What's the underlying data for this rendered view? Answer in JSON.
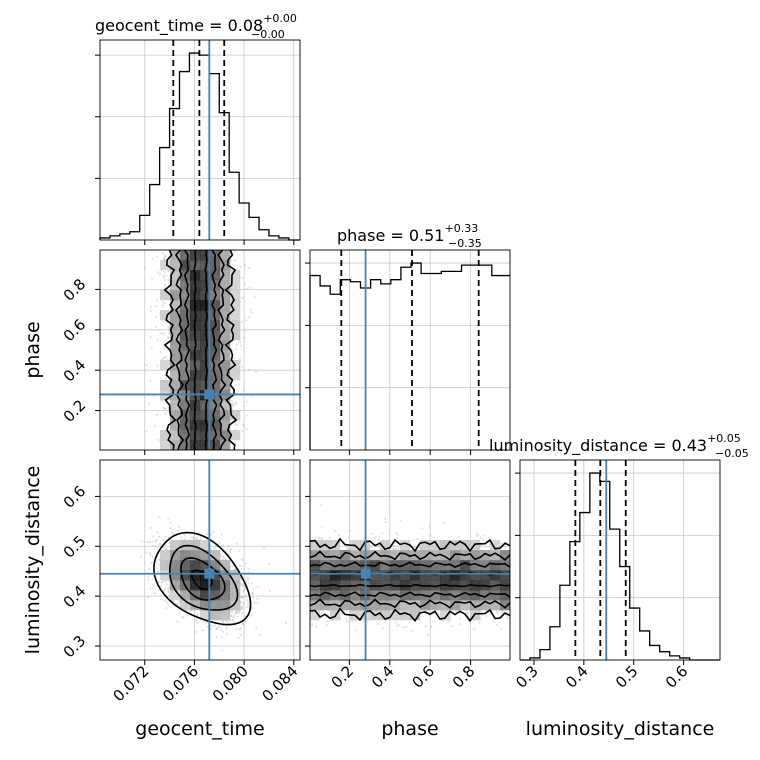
{
  "chart_data": {
    "type": "corner",
    "parameters": [
      "geocent_time",
      "phase",
      "luminosity_distance"
    ],
    "truths": [
      0.0772,
      0.28,
      0.445
    ],
    "colors": {
      "truth": "#4682b4",
      "hist": "#000000",
      "grid": "#c8c8c8",
      "contour": "#000000"
    },
    "grid": true,
    "titles": [
      {
        "text": "geocent_time = 0.08",
        "sup": "+0.00",
        "sub": "−0.00"
      },
      {
        "text": "phase = 0.51",
        "sup": "+0.33",
        "sub": "−0.35"
      },
      {
        "text": "luminosity_distance = 0.43",
        "sup": "+0.05",
        "sub": "−0.05"
      }
    ],
    "axes": {
      "geocent_time": {
        "range": [
          0.0684,
          0.0845
        ],
        "ticks": [
          0.072,
          0.076,
          0.08,
          0.084
        ],
        "tick_labels": [
          "0.072",
          "0.076",
          "0.080",
          "0.084"
        ]
      },
      "phase": {
        "range": [
          0.005,
          0.995
        ],
        "ticks": [
          0.2,
          0.4,
          0.6,
          0.8
        ],
        "tick_labels": [
          "0.2",
          "0.4",
          "0.6",
          "0.8"
        ]
      },
      "luminosity_distance": {
        "range": [
          0.272,
          0.673
        ],
        "ticks": [
          0.3,
          0.4,
          0.5,
          0.6
        ],
        "tick_labels": [
          "0.3",
          "0.4",
          "0.5",
          "0.6"
        ]
      }
    },
    "marginals": [
      {
        "param": "geocent_time",
        "quantiles": [
          0.0743,
          0.0764,
          0.0784
        ],
        "bin_edges": [
          0.0684,
          0.0692,
          0.07,
          0.0708,
          0.0716,
          0.0724,
          0.0732,
          0.074,
          0.0748,
          0.0756,
          0.0764,
          0.0772,
          0.078,
          0.0788,
          0.0796,
          0.0804,
          0.0812,
          0.082,
          0.0828,
          0.0836,
          0.0845
        ],
        "counts": [
          1,
          2,
          3,
          4,
          12,
          27,
          45,
          64,
          82,
          91,
          90,
          81,
          62,
          33,
          18,
          11,
          5,
          2,
          1,
          0
        ]
      },
      {
        "param": "phase",
        "quantiles": [
          0.16,
          0.51,
          0.84
        ],
        "bin_edges": [
          0.005,
          0.055,
          0.105,
          0.155,
          0.205,
          0.255,
          0.305,
          0.355,
          0.405,
          0.455,
          0.505,
          0.555,
          0.605,
          0.655,
          0.705,
          0.755,
          0.805,
          0.855,
          0.905,
          0.955,
          0.995
        ],
        "counts": [
          84,
          79,
          75,
          82,
          81,
          78,
          82,
          80,
          82,
          88,
          90,
          85,
          85,
          86,
          86,
          89,
          89,
          89,
          84,
          84
        ]
      },
      {
        "param": "luminosity_distance",
        "quantiles": [
          0.383,
          0.433,
          0.484
        ],
        "bin_edges": [
          0.272,
          0.292,
          0.312,
          0.332,
          0.352,
          0.372,
          0.392,
          0.412,
          0.432,
          0.452,
          0.472,
          0.492,
          0.512,
          0.532,
          0.552,
          0.572,
          0.592,
          0.612,
          0.632,
          0.652,
          0.673
        ],
        "counts": [
          0,
          1,
          5,
          16,
          36,
          57,
          71,
          90,
          86,
          63,
          45,
          25,
          14,
          7,
          4,
          2,
          1,
          0,
          0,
          0
        ]
      }
    ],
    "joint": [
      {
        "x": "geocent_time",
        "y": "phase",
        "cx": 0.0765,
        "cy": 0.5,
        "sx": 0.0014,
        "sy": 0.35,
        "rho": 0.0,
        "contour_half_widths": [
          0.00045,
          0.0011,
          0.0017,
          0.00245
        ]
      },
      {
        "x": "geocent_time",
        "y": "luminosity_distance",
        "cx": 0.0766,
        "cy": 0.433,
        "sx": 0.0016,
        "sy": 0.038,
        "rho": -0.4,
        "contour_scales": [
          0.5,
          1.1,
          1.7,
          2.4
        ]
      },
      {
        "x": "phase",
        "y": "luminosity_distance",
        "cx": 0.5,
        "cy": 0.433,
        "sx": 0.35,
        "sy": 0.036,
        "rho": 0.0,
        "contour_half_widths": [
          0.012,
          0.03,
          0.048,
          0.07
        ]
      }
    ]
  }
}
